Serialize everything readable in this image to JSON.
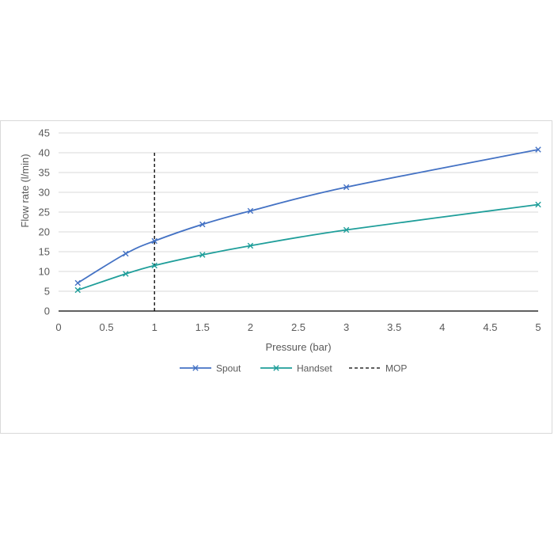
{
  "chart_data": {
    "type": "line",
    "title": "",
    "xlabel": "Pressure (bar)",
    "ylabel": "Flow rate (l/min)",
    "xlim": [
      0,
      5
    ],
    "ylim": [
      0,
      45
    ],
    "x_ticks": [
      "0",
      "0.5",
      "1",
      "1.5",
      "2",
      "2.5",
      "3",
      "3.5",
      "4",
      "4.5",
      "5"
    ],
    "y_ticks": [
      "0",
      "5",
      "10",
      "15",
      "20",
      "25",
      "30",
      "35",
      "40",
      "45"
    ],
    "grid": true,
    "legend_position": "bottom",
    "series": [
      {
        "name": "Spout",
        "color": "#4472c4",
        "marker": "x",
        "x": [
          0.2,
          0.7,
          1,
          1.5,
          2,
          3,
          5
        ],
        "y": [
          7.1,
          14.5,
          17.7,
          21.9,
          25.3,
          31.3,
          40.8
        ]
      },
      {
        "name": "Handset",
        "color": "#1f9e9a",
        "marker": "x",
        "x": [
          0.2,
          0.7,
          1,
          1.5,
          2,
          3,
          5
        ],
        "y": [
          5.3,
          9.4,
          11.5,
          14.2,
          16.5,
          20.5,
          26.9
        ]
      }
    ],
    "reference_lines": [
      {
        "name": "MOP",
        "x": 1,
        "y_range": [
          0,
          40
        ],
        "style": "dashed",
        "color": "#000000"
      }
    ]
  }
}
